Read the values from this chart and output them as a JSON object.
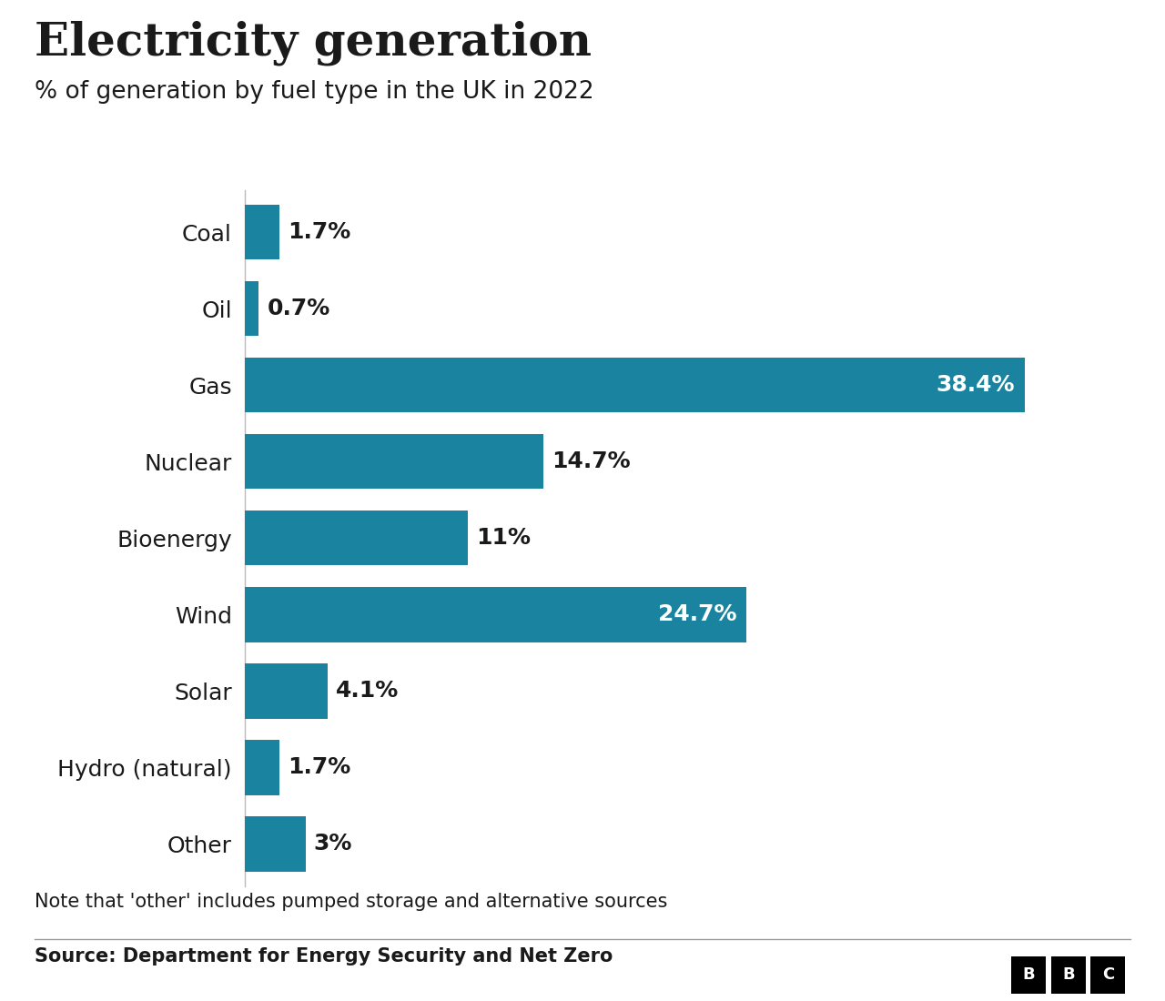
{
  "title": "Electricity generation",
  "subtitle": "% of generation by fuel type in the UK in 2022",
  "categories": [
    "Coal",
    "Oil",
    "Gas",
    "Nuclear",
    "Bioenergy",
    "Wind",
    "Solar",
    "Hydro (natural)",
    "Other"
  ],
  "values": [
    1.7,
    0.7,
    38.4,
    14.7,
    11.0,
    24.7,
    4.1,
    1.7,
    3.0
  ],
  "labels": [
    "1.7%",
    "0.7%",
    "38.4%",
    "14.7%",
    "11%",
    "24.7%",
    "4.1%",
    "1.7%",
    "3%"
  ],
  "bar_color": "#1a84a0",
  "text_color_light": "#ffffff",
  "text_color_dark": "#1a1a1a",
  "background_color": "#ffffff",
  "note_text": "Note that 'other' includes pumped storage and alternative sources",
  "source_text": "Source: Department for Energy Security and Net Zero",
  "title_fontsize": 36,
  "subtitle_fontsize": 19,
  "label_fontsize": 18,
  "category_fontsize": 18,
  "note_fontsize": 15,
  "source_fontsize": 15,
  "xlim": [
    0,
    43
  ],
  "bar_height": 0.72
}
